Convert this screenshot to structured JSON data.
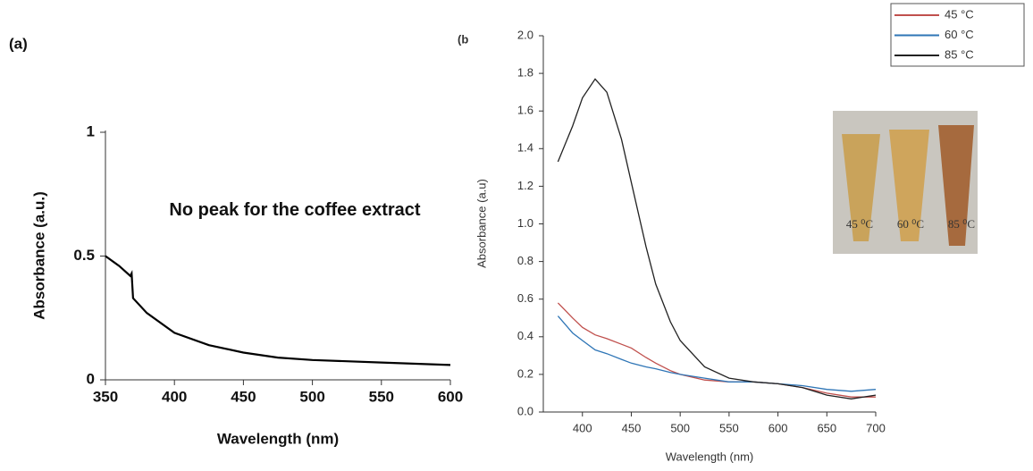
{
  "chart_data": [
    {
      "type": "line",
      "panel": "(a)",
      "xlabel": "Wavelength (nm)",
      "ylabel": "Absorbance (a.u.)",
      "annotation": "No peak for the coffee extract",
      "x": [
        350,
        360,
        368,
        369,
        370,
        380,
        400,
        425,
        450,
        475,
        500,
        550,
        600
      ],
      "values": [
        0.5,
        0.46,
        0.42,
        0.43,
        0.33,
        0.27,
        0.19,
        0.14,
        0.11,
        0.09,
        0.08,
        0.07,
        0.06
      ],
      "color": "#000000",
      "xlim": [
        350,
        600
      ],
      "xticks": [
        350,
        400,
        450,
        500,
        550,
        600
      ],
      "ylim": [
        0,
        1
      ],
      "yticks": [
        0,
        0.5,
        1
      ]
    },
    {
      "type": "line",
      "panel": "(b",
      "xlabel": "Wavelength (nm)",
      "ylabel": "Absorbance (a.u)",
      "x": [
        375,
        390,
        400,
        413,
        425,
        440,
        450,
        465,
        475,
        490,
        500,
        525,
        550,
        575,
        600,
        625,
        650,
        675,
        700
      ],
      "series": [
        {
          "name": "45 °C",
          "color": "#c0504d",
          "values": [
            0.58,
            0.5,
            0.45,
            0.41,
            0.39,
            0.36,
            0.34,
            0.29,
            0.26,
            0.22,
            0.2,
            0.17,
            0.16,
            0.16,
            0.15,
            0.13,
            0.1,
            0.08,
            0.08
          ]
        },
        {
          "name": "60 °C",
          "color": "#2e75b6",
          "values": [
            0.51,
            0.42,
            0.38,
            0.33,
            0.31,
            0.28,
            0.26,
            0.24,
            0.23,
            0.21,
            0.2,
            0.18,
            0.16,
            0.16,
            0.15,
            0.14,
            0.12,
            0.11,
            0.12
          ]
        },
        {
          "name": "85 °C",
          "color": "#222222",
          "values": [
            1.33,
            1.52,
            1.67,
            1.77,
            1.7,
            1.45,
            1.22,
            0.88,
            0.68,
            0.48,
            0.38,
            0.24,
            0.18,
            0.16,
            0.15,
            0.13,
            0.09,
            0.07,
            0.09
          ]
        }
      ],
      "legend": "upper right",
      "inset_labels": [
        "45 ⁰C",
        "60 ⁰C",
        "85 ⁰C"
      ],
      "xlim": [
        360,
        700
      ],
      "xticks": [
        400,
        450,
        500,
        550,
        600,
        650,
        700
      ],
      "ylim": [
        0,
        2
      ],
      "yticks": [
        {
          "value": 0,
          "label": "0.0"
        },
        0.2,
        0.4,
        0.6,
        0.8,
        {
          "value": 1,
          "label": "1.0"
        },
        1.2,
        1.4,
        1.6,
        1.8,
        {
          "value": 2,
          "label": "2.0"
        }
      ]
    }
  ]
}
